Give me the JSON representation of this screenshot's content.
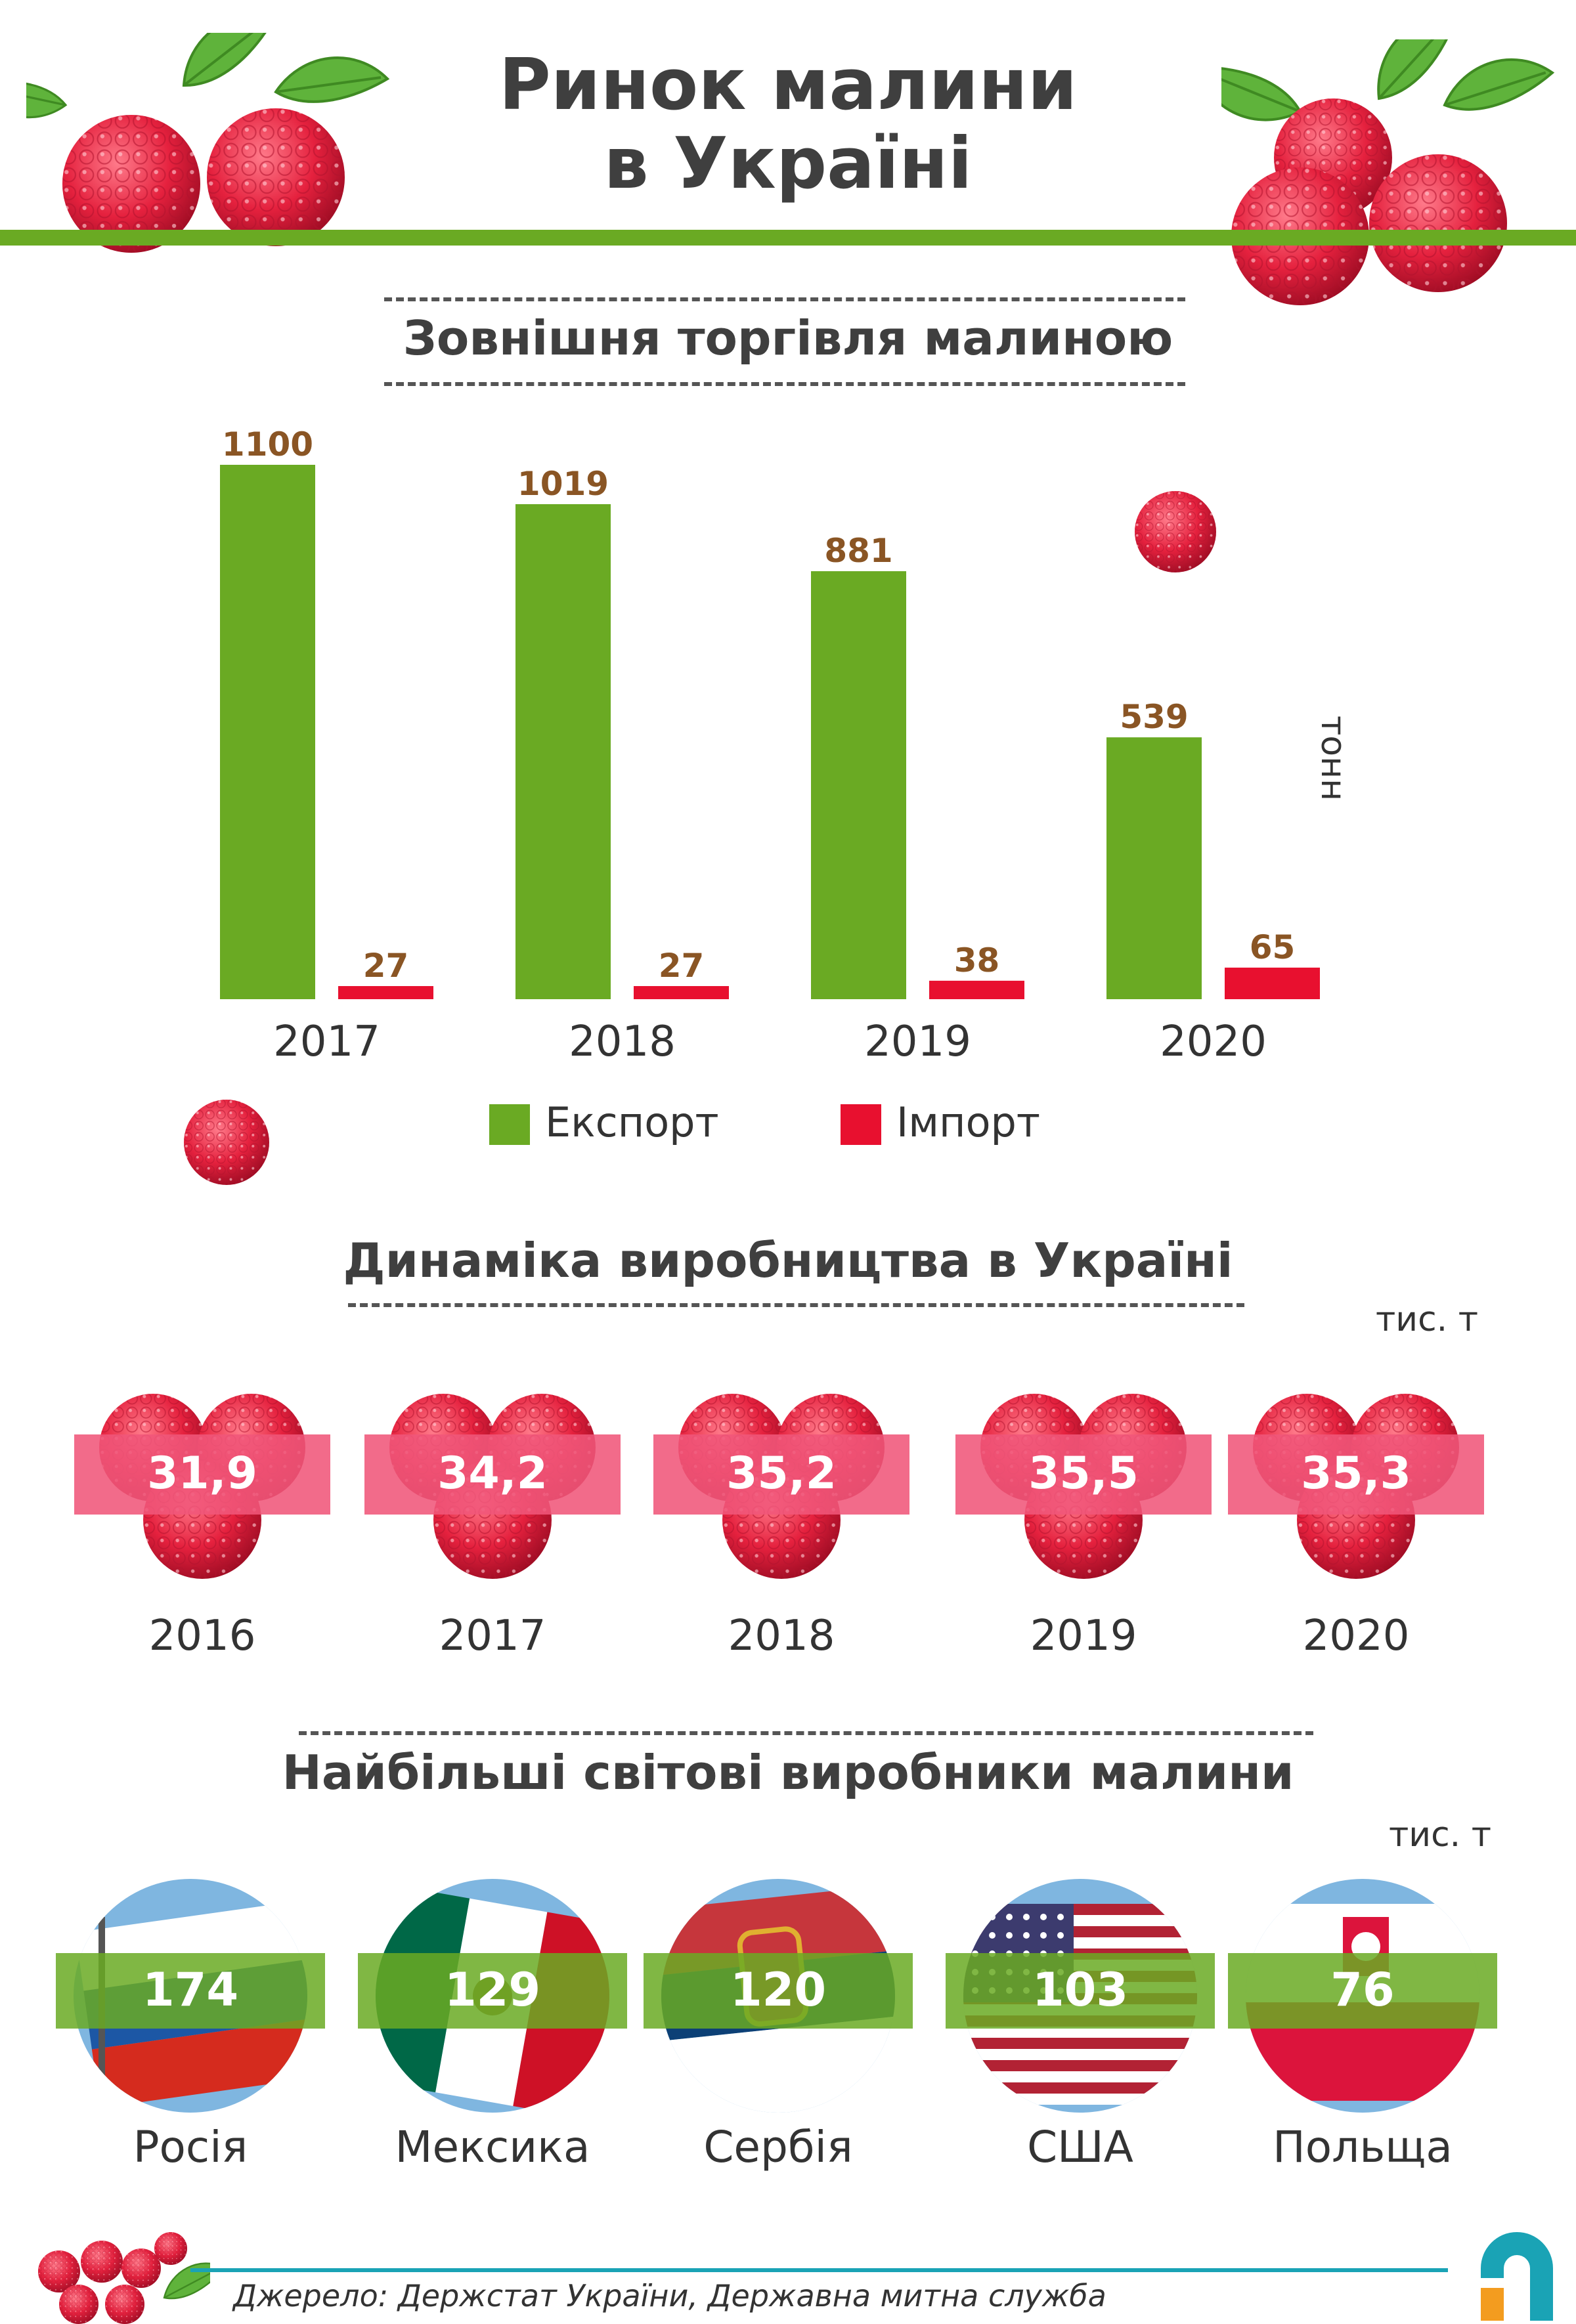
{
  "header": {
    "title_line1": "Ринок малини",
    "title_line2": "в Україні"
  },
  "colors": {
    "green": "#6aaa23",
    "red": "#e8102f",
    "pink_band": "#f0567a",
    "value_brown": "#8a5524",
    "teal": "#1aa3b5"
  },
  "sections": {
    "trade_title": "Зовнішня торгівля малиною",
    "production_title": "Динаміка виробництва в Україні",
    "world_title": "Найбільші світові виробники малини"
  },
  "trade": {
    "unit": "тонн",
    "legend": {
      "export": "Експорт",
      "import": "Імпорт"
    }
  },
  "production": {
    "unit": "тис. т"
  },
  "world": {
    "unit": "тис. т"
  },
  "chart_data": [
    {
      "type": "bar",
      "title": "Зовнішня торгівля малиною",
      "ylabel": "тонн",
      "categories": [
        "2017",
        "2018",
        "2019",
        "2020"
      ],
      "series": [
        {
          "name": "Експорт",
          "values": [
            1100,
            1019,
            881,
            539
          ],
          "color": "#6aaa23"
        },
        {
          "name": "Імпорт",
          "values": [
            27,
            27,
            38,
            65
          ],
          "color": "#e8102f"
        }
      ],
      "legend": "bottom"
    },
    {
      "type": "table",
      "title": "Динаміка виробництва в Україні",
      "unit": "тис. т",
      "categories": [
        "2016",
        "2017",
        "2018",
        "2019",
        "2020"
      ],
      "values": [
        "31,9",
        "34,2",
        "35,2",
        "35,5",
        "35,3"
      ]
    },
    {
      "type": "table",
      "title": "Найбільші світові виробники малини",
      "unit": "тис. т",
      "categories": [
        "Росія",
        "Мексика",
        "Сербія",
        "США",
        "Польща"
      ],
      "values": [
        "174",
        "129",
        "120",
        "103",
        "76"
      ]
    }
  ],
  "footer": {
    "source": "Джерело:  Держстат України, Державна митна служба"
  }
}
